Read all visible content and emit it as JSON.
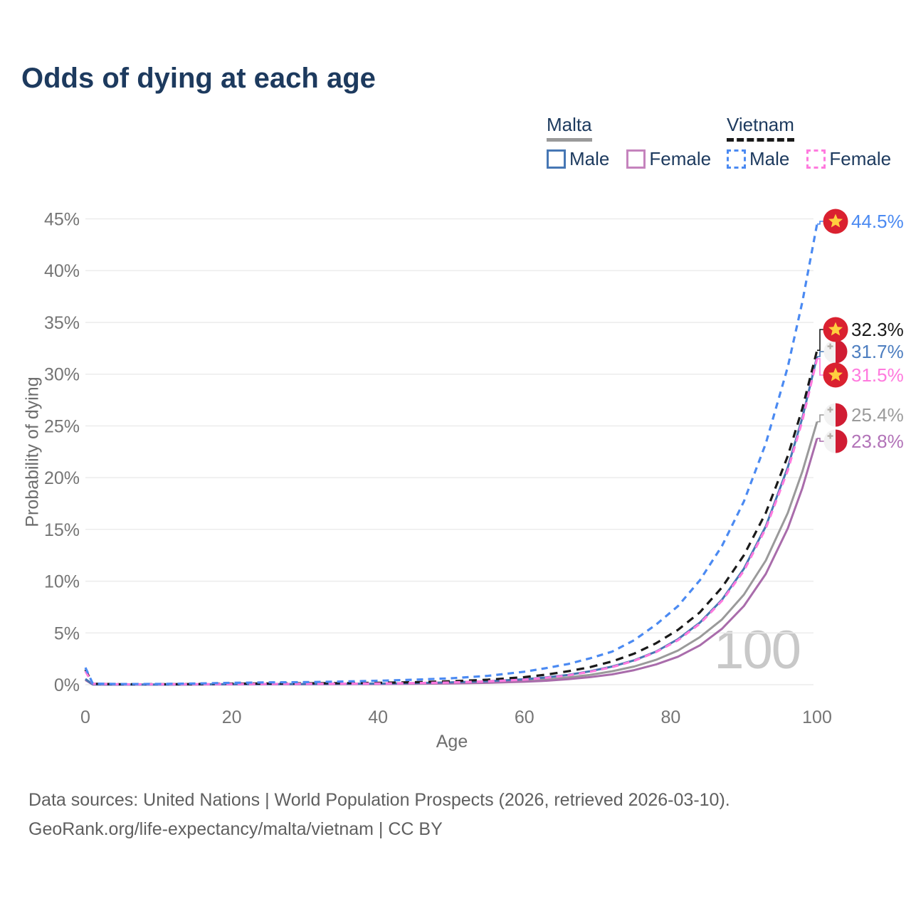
{
  "title": "Odds of dying at each age",
  "legend": {
    "groups": [
      {
        "country": "Malta",
        "items": [
          {
            "label": "Male"
          },
          {
            "label": "Female"
          }
        ]
      },
      {
        "country": "Vietnam",
        "items": [
          {
            "label": "Male"
          },
          {
            "label": "Female"
          }
        ]
      }
    ]
  },
  "footer": {
    "line1": "Data sources: United Nations | World Population Prospects (2026, retrieved 2026-03-10).",
    "line2": "GeoRank.org/life-expectancy/malta/vietnam | CC BY"
  },
  "colors": {
    "title": "#1d3a5e",
    "axis_text": "#757575",
    "axis_title": "#6e6e6e",
    "grid": "#ececec",
    "footer_text": "#5f5f5f",
    "watermark": "#c8c8c8",
    "malta_male": "#4677b4",
    "malta_female": "#a96cab",
    "malta_total": "#9a9a9a",
    "legend_malta_female": "#c583bd",
    "vietnam_male": "#4b8af2",
    "vietnam_female": "#ff7ade",
    "vietnam_total": "#1a1a1a",
    "vn_flag_red": "#da2130",
    "vn_flag_star": "#ffcf3f",
    "mt_flag_white": "#f2f2f2",
    "mt_flag_red": "#d01c33",
    "mt_flag_cross": "#b3afa9"
  },
  "chart_data": {
    "type": "line",
    "title": "Odds of dying at each age",
    "xlabel": "Age",
    "ylabel": "Probability of dying",
    "xlim": [
      0,
      100
    ],
    "ylim": [
      0,
      45
    ],
    "xticks": [
      0,
      20,
      40,
      60,
      80,
      100
    ],
    "yticks": [
      0,
      5,
      10,
      15,
      20,
      25,
      30,
      35,
      40,
      45
    ],
    "grid": "horizontal",
    "legend_position": "top-right",
    "hover_age_label": "100",
    "series": [
      {
        "key": "malta_total",
        "name": "Malta (both sexes)",
        "country": "Malta",
        "sex": "total",
        "dashed": false,
        "color": "#9a9a9a",
        "label_color": "#9b9b9b",
        "flag": "malta",
        "end_label": "25.4%",
        "end_value": 25.4,
        "points": [
          [
            0,
            0.5
          ],
          [
            1,
            0.025
          ],
          [
            5,
            0.01
          ],
          [
            10,
            0.01
          ],
          [
            15,
            0.025
          ],
          [
            20,
            0.04
          ],
          [
            25,
            0.045
          ],
          [
            30,
            0.05
          ],
          [
            35,
            0.06
          ],
          [
            40,
            0.085
          ],
          [
            45,
            0.12
          ],
          [
            50,
            0.17
          ],
          [
            55,
            0.25
          ],
          [
            60,
            0.38
          ],
          [
            63,
            0.5
          ],
          [
            66,
            0.7
          ],
          [
            69,
            0.95
          ],
          [
            72,
            1.3
          ],
          [
            75,
            1.75
          ],
          [
            78,
            2.4
          ],
          [
            81,
            3.3
          ],
          [
            84,
            4.6
          ],
          [
            87,
            6.3
          ],
          [
            90,
            8.7
          ],
          [
            93,
            12.0
          ],
          [
            96,
            16.6
          ],
          [
            98,
            20.6
          ],
          [
            100,
            25.4
          ]
        ]
      },
      {
        "key": "malta_female",
        "name": "Malta Female",
        "country": "Malta",
        "sex": "female",
        "dashed": false,
        "color": "#a96cab",
        "label_color": "#b273b8",
        "flag": "malta",
        "end_label": "23.8%",
        "end_value": 23.8,
        "points": [
          [
            0,
            0.45
          ],
          [
            1,
            0.02
          ],
          [
            5,
            0.008
          ],
          [
            10,
            0.008
          ],
          [
            15,
            0.02
          ],
          [
            20,
            0.03
          ],
          [
            25,
            0.035
          ],
          [
            30,
            0.04
          ],
          [
            35,
            0.045
          ],
          [
            40,
            0.06
          ],
          [
            45,
            0.085
          ],
          [
            50,
            0.12
          ],
          [
            55,
            0.18
          ],
          [
            60,
            0.28
          ],
          [
            63,
            0.38
          ],
          [
            66,
            0.53
          ],
          [
            69,
            0.73
          ],
          [
            72,
            1.0
          ],
          [
            75,
            1.4
          ],
          [
            78,
            1.95
          ],
          [
            81,
            2.7
          ],
          [
            84,
            3.8
          ],
          [
            87,
            5.4
          ],
          [
            90,
            7.6
          ],
          [
            93,
            10.7
          ],
          [
            96,
            15.1
          ],
          [
            98,
            19.0
          ],
          [
            100,
            23.8
          ]
        ]
      },
      {
        "key": "malta_male",
        "name": "Malta Male",
        "country": "Malta",
        "sex": "male",
        "dashed": false,
        "color": "#4677b4",
        "label_color": "#4d7ec0",
        "flag": "malta",
        "end_label": "31.7%",
        "end_value": 31.7,
        "points": [
          [
            0,
            0.55
          ],
          [
            1,
            0.03
          ],
          [
            5,
            0.01
          ],
          [
            10,
            0.01
          ],
          [
            15,
            0.03
          ],
          [
            20,
            0.05
          ],
          [
            25,
            0.055
          ],
          [
            30,
            0.06
          ],
          [
            35,
            0.08
          ],
          [
            40,
            0.1
          ],
          [
            45,
            0.16
          ],
          [
            50,
            0.23
          ],
          [
            55,
            0.34
          ],
          [
            60,
            0.52
          ],
          [
            63,
            0.7
          ],
          [
            66,
            0.95
          ],
          [
            69,
            1.3
          ],
          [
            72,
            1.75
          ],
          [
            75,
            2.35
          ],
          [
            78,
            3.2
          ],
          [
            81,
            4.4
          ],
          [
            84,
            6.0
          ],
          [
            87,
            8.2
          ],
          [
            90,
            11.2
          ],
          [
            93,
            15.3
          ],
          [
            96,
            21.0
          ],
          [
            98,
            25.8
          ],
          [
            100,
            31.7
          ]
        ]
      },
      {
        "key": "vietnam_total",
        "name": "Vietnam (both sexes)",
        "country": "Vietnam",
        "sex": "total",
        "dashed": true,
        "color": "#1a1a1a",
        "label_color": "#1a1a1a",
        "flag": "vietnam",
        "end_label": "32.3%",
        "end_value": 32.3,
        "points": [
          [
            0,
            1.45
          ],
          [
            1,
            0.09
          ],
          [
            5,
            0.04
          ],
          [
            10,
            0.04
          ],
          [
            15,
            0.06
          ],
          [
            20,
            0.1
          ],
          [
            25,
            0.12
          ],
          [
            30,
            0.13
          ],
          [
            35,
            0.15
          ],
          [
            40,
            0.18
          ],
          [
            45,
            0.24
          ],
          [
            50,
            0.33
          ],
          [
            55,
            0.48
          ],
          [
            60,
            0.73
          ],
          [
            63,
            0.97
          ],
          [
            66,
            1.3
          ],
          [
            69,
            1.7
          ],
          [
            72,
            2.25
          ],
          [
            75,
            3.0
          ],
          [
            78,
            4.0
          ],
          [
            81,
            5.3
          ],
          [
            84,
            7.0
          ],
          [
            87,
            9.4
          ],
          [
            90,
            12.5
          ],
          [
            93,
            16.6
          ],
          [
            96,
            22.1
          ],
          [
            98,
            26.7
          ],
          [
            100,
            32.3
          ]
        ]
      },
      {
        "key": "vietnam_female",
        "name": "Vietnam Female",
        "country": "Vietnam",
        "sex": "female",
        "dashed": true,
        "color": "#ff7ade",
        "label_color": "#ff7ade",
        "flag": "vietnam",
        "end_label": "31.5%",
        "end_value": 31.5,
        "points": [
          [
            0,
            1.3
          ],
          [
            1,
            0.08
          ],
          [
            5,
            0.035
          ],
          [
            10,
            0.035
          ],
          [
            15,
            0.045
          ],
          [
            20,
            0.06
          ],
          [
            25,
            0.07
          ],
          [
            30,
            0.08
          ],
          [
            35,
            0.09
          ],
          [
            40,
            0.11
          ],
          [
            45,
            0.15
          ],
          [
            50,
            0.21
          ],
          [
            55,
            0.32
          ],
          [
            60,
            0.49
          ],
          [
            63,
            0.67
          ],
          [
            66,
            0.9
          ],
          [
            69,
            1.25
          ],
          [
            72,
            1.7
          ],
          [
            75,
            2.3
          ],
          [
            78,
            3.15
          ],
          [
            81,
            4.3
          ],
          [
            84,
            5.9
          ],
          [
            87,
            8.1
          ],
          [
            90,
            11.0
          ],
          [
            93,
            15.1
          ],
          [
            96,
            20.7
          ],
          [
            98,
            25.5
          ],
          [
            100,
            31.5
          ]
        ]
      },
      {
        "key": "vietnam_male",
        "name": "Vietnam Male",
        "country": "Vietnam",
        "sex": "male",
        "dashed": true,
        "color": "#4b8af2",
        "label_color": "#4b8af2",
        "flag": "vietnam",
        "end_label": "44.5%",
        "end_value": 44.5,
        "points": [
          [
            0,
            1.65
          ],
          [
            1,
            0.1
          ],
          [
            5,
            0.06
          ],
          [
            10,
            0.07
          ],
          [
            15,
            0.11
          ],
          [
            20,
            0.18
          ],
          [
            25,
            0.22
          ],
          [
            30,
            0.25
          ],
          [
            35,
            0.3
          ],
          [
            40,
            0.38
          ],
          [
            45,
            0.48
          ],
          [
            50,
            0.62
          ],
          [
            55,
            0.85
          ],
          [
            60,
            1.25
          ],
          [
            63,
            1.6
          ],
          [
            66,
            2.0
          ],
          [
            69,
            2.55
          ],
          [
            72,
            3.2
          ],
          [
            75,
            4.3
          ],
          [
            78,
            5.8
          ],
          [
            81,
            7.6
          ],
          [
            84,
            10.1
          ],
          [
            87,
            13.4
          ],
          [
            90,
            17.7
          ],
          [
            93,
            23.3
          ],
          [
            96,
            30.7
          ],
          [
            98,
            37.0
          ],
          [
            100,
            44.5
          ]
        ]
      }
    ]
  }
}
